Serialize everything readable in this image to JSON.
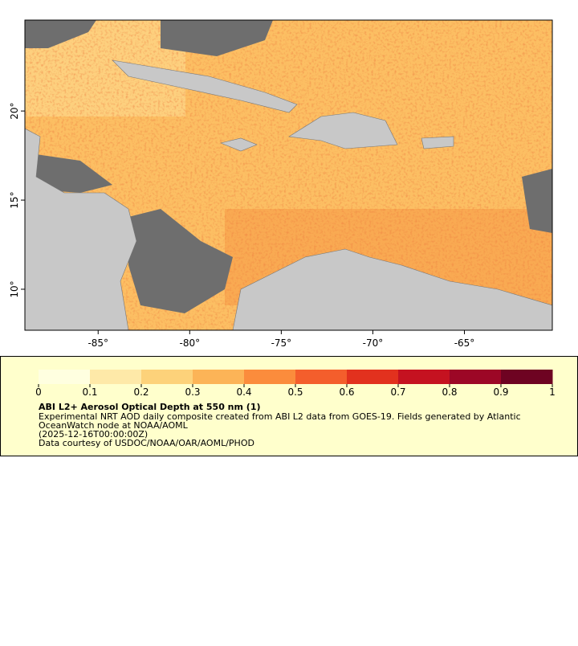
{
  "map": {
    "xlim": [
      -89,
      -60.2
    ],
    "ylim": [
      7.7,
      25.1
    ],
    "xticks": [
      {
        "value": -85,
        "label": "-85°"
      },
      {
        "value": -80,
        "label": "-80°"
      },
      {
        "value": -75,
        "label": "-75°"
      },
      {
        "value": -70,
        "label": "-70°"
      },
      {
        "value": -65,
        "label": "-65°"
      }
    ],
    "yticks": [
      {
        "value": 10,
        "label": "10°"
      },
      {
        "value": 15,
        "label": "15°"
      },
      {
        "value": 20,
        "label": "20°"
      }
    ],
    "colorbar": {
      "lim": [
        0,
        1
      ],
      "ticks": [
        0,
        0.1,
        0.2,
        0.3,
        0.4,
        0.5,
        0.6,
        0.7,
        0.8,
        0.9,
        1
      ],
      "colors": [
        "#ffffe0",
        "#fee9a8",
        "#fdd27a",
        "#fcb457",
        "#fb8c3c",
        "#f45e2c",
        "#e2311e",
        "#c51220",
        "#9c0726",
        "#6e0322"
      ]
    },
    "legend": {
      "title": "ABI L2+ Aerosol Optical Depth at 550 nm (1)",
      "lines": [
        "Experimental NRT AOD daily composite created from ABI L2 data from GOES-19. Fields generated by Atlantic",
        "OceanWatch node at NOAA/AOML",
        "(2025-12-16T00:00:00Z)",
        "Data courtesy of USDOC/NOAA/OAR/AOML/PHOD"
      ]
    }
  }
}
